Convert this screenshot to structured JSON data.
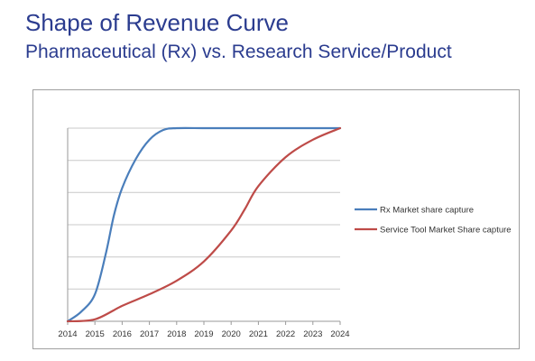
{
  "slide": {
    "title": "Shape of Revenue Curve",
    "subtitle": "Pharmaceutical (Rx) vs. Research Service/Product"
  },
  "chart_data": {
    "type": "line",
    "title": "",
    "xlabel": "",
    "ylabel": "",
    "x": [
      2014,
      2015,
      2016,
      2017,
      2018,
      2019,
      2020,
      2021,
      2022,
      2023,
      2024
    ],
    "xlim": [
      2014,
      2024
    ],
    "ylim": [
      0,
      100
    ],
    "y_gridlines": 6,
    "y_tick_labels_shown": false,
    "grid": true,
    "legend_position": "right",
    "series": [
      {
        "name": "Rx Market share capture",
        "color": "#4a7ebb",
        "points": [
          [
            2014,
            0
          ],
          [
            2014.5,
            5
          ],
          [
            2015,
            14
          ],
          [
            2015.4,
            35
          ],
          [
            2015.7,
            55
          ],
          [
            2016,
            69
          ],
          [
            2016.5,
            84
          ],
          [
            2017,
            94
          ],
          [
            2017.5,
            99
          ],
          [
            2018,
            100
          ],
          [
            2019,
            100
          ],
          [
            2020,
            100
          ],
          [
            2021,
            100
          ],
          [
            2022,
            100
          ],
          [
            2023,
            100
          ],
          [
            2024,
            100
          ]
        ]
      },
      {
        "name": "Service Tool Market Share capture",
        "color": "#be4b48",
        "points": [
          [
            2014,
            0
          ],
          [
            2015,
            1
          ],
          [
            2016,
            8
          ],
          [
            2017,
            14
          ],
          [
            2018,
            21
          ],
          [
            2019,
            31
          ],
          [
            2020,
            47
          ],
          [
            2020.5,
            58
          ],
          [
            2021,
            70
          ],
          [
            2022,
            85
          ],
          [
            2023,
            94
          ],
          [
            2024,
            100
          ]
        ]
      }
    ]
  }
}
